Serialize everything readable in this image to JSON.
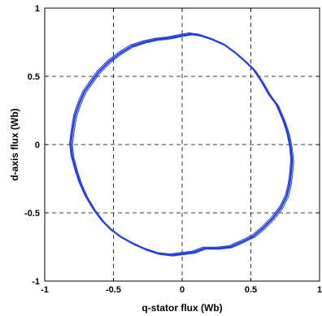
{
  "chart_data": {
    "type": "line",
    "title": "",
    "xlabel": "q-stator flux (Wb)",
    "ylabel": "d-axis flux (Wb)",
    "xlim": [
      -1,
      1
    ],
    "ylim": [
      -1,
      1
    ],
    "xticks": [
      -1,
      -0.5,
      0,
      0.5,
      1
    ],
    "yticks": [
      -1,
      -0.5,
      0,
      0.5,
      1
    ],
    "xtick_labels": [
      "-1",
      "-0.5",
      "0",
      "0.5",
      "1"
    ],
    "ytick_labels": [
      "-1",
      "-0.5",
      "0",
      "0.5",
      "1"
    ],
    "grid": true,
    "grid_style": "dashed",
    "line_color": "#1f3fe0",
    "series": [
      {
        "x": [
          0.0,
          0.06,
          0.13,
          0.22,
          0.31,
          0.39,
          0.47,
          0.52,
          0.58,
          0.63,
          0.69,
          0.74,
          0.77,
          0.79,
          0.8,
          0.79,
          0.78,
          0.76,
          0.72,
          0.66,
          0.59,
          0.52,
          0.44,
          0.35,
          0.26,
          0.16,
          0.08,
          0.0,
          -0.08,
          -0.17,
          -0.26,
          -0.35,
          -0.44,
          -0.52,
          -0.58,
          -0.64,
          -0.7,
          -0.74,
          -0.77,
          -0.8,
          -0.81,
          -0.8,
          -0.78,
          -0.75,
          -0.71,
          -0.66,
          -0.61,
          -0.53,
          -0.45,
          -0.37,
          -0.28,
          -0.19,
          -0.1,
          0.0
        ],
        "y": [
          0.8,
          0.81,
          0.8,
          0.77,
          0.73,
          0.67,
          0.6,
          0.55,
          0.46,
          0.37,
          0.29,
          0.17,
          0.08,
          -0.02,
          -0.12,
          -0.23,
          -0.3,
          -0.38,
          -0.46,
          -0.54,
          -0.61,
          -0.67,
          -0.71,
          -0.75,
          -0.76,
          -0.76,
          -0.79,
          -0.8,
          -0.81,
          -0.8,
          -0.77,
          -0.73,
          -0.68,
          -0.62,
          -0.56,
          -0.48,
          -0.38,
          -0.29,
          -0.2,
          -0.09,
          0.0,
          0.09,
          0.21,
          0.3,
          0.39,
          0.46,
          0.53,
          0.61,
          0.67,
          0.72,
          0.75,
          0.77,
          0.78,
          0.8
        ]
      }
    ]
  }
}
